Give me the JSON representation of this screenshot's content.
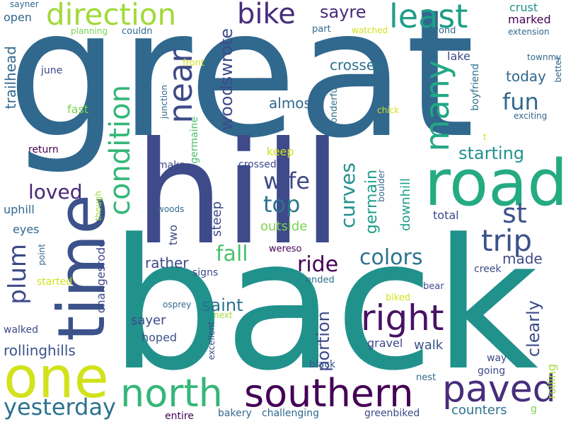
{
  "words": [
    {
      "text": "great",
      "color": "#31688e"
    },
    {
      "text": "back",
      "color": "#21918c"
    },
    {
      "text": "hill",
      "color": "#3e4a89"
    },
    {
      "text": "time",
      "color": "#3b528b"
    },
    {
      "text": "road",
      "color": "#25ab82"
    },
    {
      "text": "one",
      "color": "#d2e21b"
    },
    {
      "text": "southern",
      "color": "#440154"
    },
    {
      "text": "north",
      "color": "#35b779"
    },
    {
      "text": "paved",
      "color": "#472d7b"
    },
    {
      "text": "right",
      "color": "#471164"
    },
    {
      "text": "direction",
      "color": "#a0da39"
    },
    {
      "text": "near",
      "color": "#3e4a89"
    },
    {
      "text": "least",
      "color": "#1f9e89"
    },
    {
      "text": "bike",
      "color": "#472d7b"
    },
    {
      "text": "many",
      "color": "#22a884"
    },
    {
      "text": "condition",
      "color": "#35b779"
    },
    {
      "text": "yesterday",
      "color": "#2c728e"
    },
    {
      "text": "trip",
      "color": "#3b528b"
    },
    {
      "text": "fun",
      "color": "#31688e"
    },
    {
      "text": "wife",
      "color": "#3e4a89"
    },
    {
      "text": "top",
      "color": "#2c728e"
    },
    {
      "text": "st",
      "color": "#3b528b"
    },
    {
      "text": "plum",
      "color": "#3e4a89"
    },
    {
      "text": "loved",
      "color": "#482878"
    },
    {
      "text": "woodswrote",
      "color": "#3e4a89"
    },
    {
      "text": "colors",
      "color": "#2c728e"
    },
    {
      "text": "ride",
      "color": "#440154"
    },
    {
      "text": "curves",
      "color": "#21918c"
    },
    {
      "text": "fall",
      "color": "#4ac16d"
    },
    {
      "text": "sayre",
      "color": "#482878"
    },
    {
      "text": "starting",
      "color": "#21918c"
    },
    {
      "text": "crosses",
      "color": "#2c728e"
    },
    {
      "text": "saint",
      "color": "#2c728e"
    },
    {
      "text": "germain",
      "color": "#1f9e89"
    },
    {
      "text": "portion",
      "color": "#3e4a89"
    },
    {
      "text": "clearly",
      "color": "#3e4a89"
    },
    {
      "text": "trailhead",
      "color": "#31688e"
    },
    {
      "text": "rollinghills",
      "color": "#3b528b"
    },
    {
      "text": "almost",
      "color": "#31688e"
    },
    {
      "text": "today",
      "color": "#31688e"
    },
    {
      "text": "made",
      "color": "#3e4a89"
    },
    {
      "text": "rather",
      "color": "#3e4a89"
    },
    {
      "text": "sayer",
      "color": "#3e4a89"
    },
    {
      "text": "walk",
      "color": "#3b528b"
    },
    {
      "text": "counters",
      "color": "#2c728e"
    },
    {
      "text": "outside",
      "color": "#7ad151"
    },
    {
      "text": "changesrode",
      "color": "#3e4a89"
    },
    {
      "text": "steep",
      "color": "#3e4a89"
    },
    {
      "text": "downhill",
      "color": "#1f9e89"
    },
    {
      "text": "crust",
      "color": "#21918c"
    },
    {
      "text": "marked",
      "color": "#440154"
    },
    {
      "text": "open",
      "color": "#31688e"
    },
    {
      "text": "fast",
      "color": "#7ad151"
    },
    {
      "text": "keep",
      "color": "#d2e21b"
    },
    {
      "text": "total",
      "color": "#3e4a89"
    },
    {
      "text": "uphill",
      "color": "#31688e"
    },
    {
      "text": "eyes",
      "color": "#31688e"
    },
    {
      "text": "lake",
      "color": "#3e4a89"
    },
    {
      "text": "wonderful",
      "color": "#2c728e"
    },
    {
      "text": "boyfriend",
      "color": "#2c728e"
    },
    {
      "text": "rolling",
      "color": "#a0da39"
    },
    {
      "text": "two",
      "color": "#3e4a89"
    },
    {
      "text": "hoped",
      "color": "#3b528b"
    },
    {
      "text": "gravel",
      "color": "#3e4a89"
    },
    {
      "text": "walked",
      "color": "#3e4a89"
    },
    {
      "text": "germaine",
      "color": "#4ac16d"
    },
    {
      "text": "crossed",
      "color": "#3e4a89"
    },
    {
      "text": "creek",
      "color": "#3e4a89"
    },
    {
      "text": "return",
      "color": "#440154"
    },
    {
      "text": "june",
      "color": "#3e4a89"
    },
    {
      "text": "signs",
      "color": "#3e4a89"
    },
    {
      "text": "make",
      "color": "#3e4a89"
    },
    {
      "text": "black",
      "color": "#3b528b"
    },
    {
      "text": "way",
      "color": "#3e4a89"
    },
    {
      "text": "going",
      "color": "#3e4a89"
    },
    {
      "text": "challenging",
      "color": "#31688e"
    },
    {
      "text": "bakery",
      "color": "#31688e"
    },
    {
      "text": "entire",
      "color": "#440154"
    },
    {
      "text": "greenbiked",
      "color": "#3e4a89"
    },
    {
      "text": "excellent",
      "color": "#3e4a89"
    },
    {
      "text": "started",
      "color": "#d2e21b"
    },
    {
      "text": "bear",
      "color": "#3e4a89"
    },
    {
      "text": "biked",
      "color": "#d2e21b"
    },
    {
      "text": "nest",
      "color": "#31688e"
    },
    {
      "text": "ended",
      "color": "#2c728e"
    },
    {
      "text": "wereso",
      "color": "#440154"
    },
    {
      "text": "osprey",
      "color": "#31688e"
    },
    {
      "text": "next",
      "color": "#a0da39"
    },
    {
      "text": "point",
      "color": "#31688e"
    },
    {
      "text": "though",
      "color": "#a0da39"
    },
    {
      "text": "woods",
      "color": "#31688e"
    },
    {
      "text": "boulder",
      "color": "#31688e"
    },
    {
      "text": "junction",
      "color": "#31688e"
    },
    {
      "text": "front",
      "color": "#d2e21b"
    },
    {
      "text": "chick",
      "color": "#d2e21b"
    },
    {
      "text": "exciting",
      "color": "#31688e"
    },
    {
      "text": "better",
      "color": "#31688e"
    },
    {
      "text": "townmy",
      "color": "#31688e"
    },
    {
      "text": "extension",
      "color": "#31688e"
    },
    {
      "text": "beyond",
      "color": "#31688e"
    },
    {
      "text": "watched",
      "color": "#d2e21b"
    },
    {
      "text": "part",
      "color": "#31688e"
    },
    {
      "text": "couldn",
      "color": "#31688e"
    },
    {
      "text": "planning",
      "color": "#7ad151"
    },
    {
      "text": "sayner",
      "color": "#31688e"
    },
    {
      "text": "t",
      "color": "#d2e21b"
    },
    {
      "text": "g",
      "color": "#7ad151"
    }
  ]
}
